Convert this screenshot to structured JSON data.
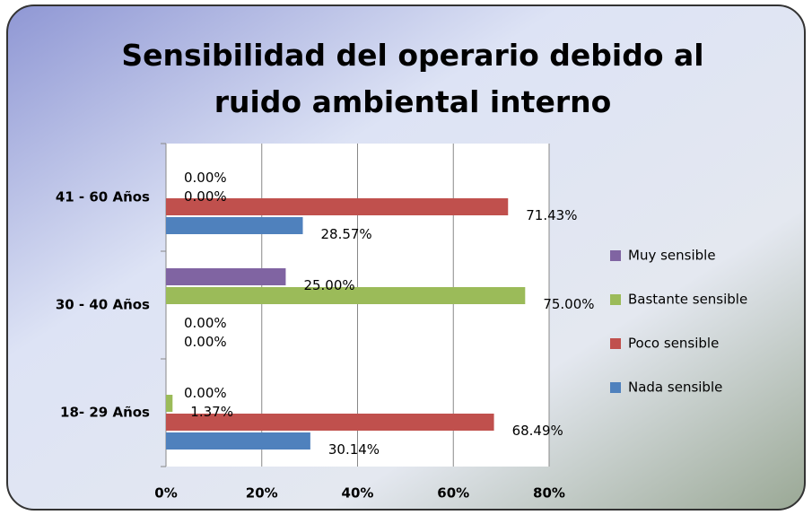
{
  "chart_data": {
    "type": "bar",
    "orientation": "horizontal",
    "title": "Sensibilidad del operario debido al ruido ambiental interno",
    "categories": [
      "18- 29 Años",
      "30 - 40 Años",
      "41 - 60 Años"
    ],
    "series": [
      {
        "name": "Nada sensible",
        "color": "#4f81bd",
        "values": [
          30.14,
          0,
          28.57
        ],
        "value_labels": [
          "30.14%",
          "0.00%",
          "28.57%"
        ]
      },
      {
        "name": "Poco sensible",
        "color": "#c0504d",
        "values": [
          68.49,
          0,
          71.43
        ],
        "value_labels": [
          "68.49%",
          "0.00%",
          "71.43%"
        ]
      },
      {
        "name": "Bastante sensible",
        "color": "#9bbb59",
        "values": [
          1.37,
          75,
          0
        ],
        "value_labels": [
          "1.37%",
          "75.00%",
          "0.00%"
        ]
      },
      {
        "name": "Muy sensible",
        "color": "#8064a2",
        "values": [
          0,
          25,
          0
        ],
        "value_labels": [
          "0.00%",
          "25.00%",
          "0.00%"
        ]
      }
    ],
    "xlim": [
      0,
      80
    ],
    "xticks": [
      {
        "value": 0,
        "label": "0%"
      },
      {
        "value": 20,
        "label": "20%"
      },
      {
        "value": 40,
        "label": "40%"
      },
      {
        "value": 60,
        "label": "60%"
      },
      {
        "value": 80,
        "label": "80%"
      }
    ],
    "grid": true,
    "legend": "right"
  }
}
